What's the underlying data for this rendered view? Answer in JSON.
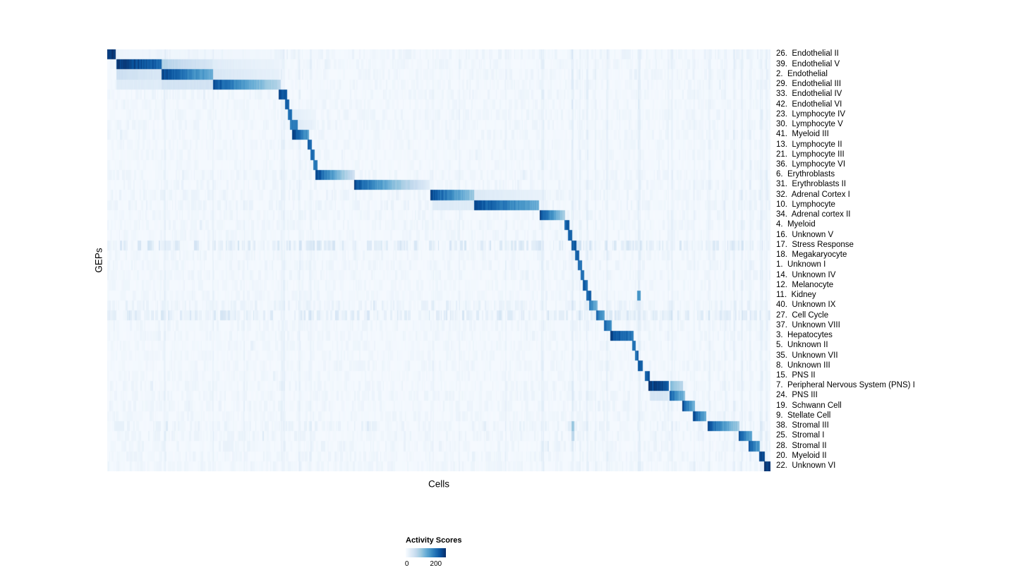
{
  "colors": {
    "background": "#ffffff",
    "text": "#000000",
    "scale_stops": [
      "#f7fbff",
      "#deebf7",
      "#c6dbef",
      "#9ecae1",
      "#6baed6",
      "#4292c6",
      "#2171b5",
      "#08519c",
      "#08306b"
    ]
  },
  "texture": {
    "column_stripes": [
      {
        "x": 0.085,
        "w": 0.003,
        "v": 0.04
      },
      {
        "x": 0.158,
        "w": 0.003,
        "v": 0.04
      },
      {
        "x": 0.205,
        "w": 0.002,
        "v": 0.03
      },
      {
        "x": 0.262,
        "w": 0.006,
        "v": 0.04
      },
      {
        "x": 0.288,
        "w": 0.004,
        "v": 0.04
      },
      {
        "x": 0.305,
        "w": 0.003,
        "v": 0.03
      },
      {
        "x": 0.49,
        "w": 0.003,
        "v": 0.03
      },
      {
        "x": 0.53,
        "w": 0.002,
        "v": 0.03
      },
      {
        "x": 0.6,
        "w": 0.002,
        "v": 0.03
      },
      {
        "x": 0.654,
        "w": 0.004,
        "v": 0.05
      },
      {
        "x": 0.7,
        "w": 0.003,
        "v": 0.06
      },
      {
        "x": 0.712,
        "w": 0.002,
        "v": 0.04
      },
      {
        "x": 0.722,
        "w": 0.003,
        "v": 0.05
      },
      {
        "x": 0.735,
        "w": 0.002,
        "v": 0.03
      },
      {
        "x": 0.752,
        "w": 0.003,
        "v": 0.04
      },
      {
        "x": 0.8,
        "w": 0.004,
        "v": 0.06
      },
      {
        "x": 0.845,
        "w": 0.002,
        "v": 0.03
      },
      {
        "x": 0.85,
        "w": 0.003,
        "v": 0.04
      },
      {
        "x": 0.884,
        "w": 0.002,
        "v": 0.03
      },
      {
        "x": 0.906,
        "w": 0.004,
        "v": 0.04
      },
      {
        "x": 0.93,
        "w": 0.003,
        "v": 0.03
      },
      {
        "x": 0.944,
        "w": 0.003,
        "v": 0.04
      },
      {
        "x": 0.955,
        "w": 0.004,
        "v": 0.05
      },
      {
        "x": 0.968,
        "w": 0.003,
        "v": 0.04
      },
      {
        "x": 0.984,
        "w": 0.004,
        "v": 0.05
      },
      {
        "x": 0.993,
        "w": 0.003,
        "v": 0.04
      }
    ]
  },
  "chart_data": {
    "type": "heatmap",
    "title": "",
    "xlabel": "Cells",
    "ylabel": "GEPs",
    "colormap": "Blues",
    "x_axis_note": "individual cells, no tick labels",
    "colorbar": {
      "title": "Activity Scores",
      "range": [
        0,
        270
      ],
      "ticks": [
        {
          "label": "0",
          "value": 0,
          "pos": 0.03
        },
        {
          "label": "200",
          "value": 200,
          "pos": 0.75
        }
      ]
    },
    "rows": [
      {
        "label": "26.  Endothelial II",
        "noise": 0.06,
        "blocks": [
          {
            "x0": 0.0,
            "x1": 0.013,
            "v": 0.96
          },
          {
            "x0": 0.013,
            "x1": 0.26,
            "v": 0.05,
            "v2": 0.03
          }
        ]
      },
      {
        "label": "39.  Endothelial V",
        "noise": 0.05,
        "blocks": [
          {
            "x0": 0.014,
            "x1": 0.082,
            "v": 0.98,
            "v2": 0.8
          },
          {
            "x0": 0.082,
            "x1": 0.158,
            "v": 0.32,
            "v2": 0.16
          },
          {
            "x0": 0.158,
            "x1": 0.26,
            "v": 0.12,
            "v2": 0.06
          }
        ]
      },
      {
        "label": "2.  Endothelial",
        "noise": 0.05,
        "blocks": [
          {
            "x0": 0.014,
            "x1": 0.082,
            "v": 0.22,
            "v2": 0.15
          },
          {
            "x0": 0.082,
            "x1": 0.16,
            "v": 0.95,
            "v2": 0.5
          },
          {
            "x0": 0.16,
            "x1": 0.26,
            "v": 0.16,
            "v2": 0.08
          }
        ]
      },
      {
        "label": "29.  Endothelial III",
        "noise": 0.05,
        "blocks": [
          {
            "x0": 0.014,
            "x1": 0.082,
            "v": 0.12
          },
          {
            "x0": 0.082,
            "x1": 0.16,
            "v": 0.18
          },
          {
            "x0": 0.16,
            "x1": 0.262,
            "v": 0.92,
            "v2": 0.28
          }
        ]
      },
      {
        "label": "33.  Endothelial IV",
        "noise": 0.05,
        "blocks": [
          {
            "x0": 0.259,
            "x1": 0.271,
            "v": 0.88
          }
        ]
      },
      {
        "label": "42.  Endothelial VI",
        "noise": 0.04,
        "blocks": [
          {
            "x0": 0.268,
            "x1": 0.2745,
            "v": 0.8
          }
        ]
      },
      {
        "label": "23.  Lymphocyte IV",
        "noise": 0.05,
        "blocks": [
          {
            "x0": 0.2725,
            "x1": 0.279,
            "v": 0.76
          },
          {
            "x0": 0.279,
            "x1": 0.315,
            "v": 0.1,
            "v2": 0.05
          }
        ]
      },
      {
        "label": "30.  Lymphocyte V",
        "noise": 0.05,
        "blocks": [
          {
            "x0": 0.2755,
            "x1": 0.287,
            "v": 0.7
          },
          {
            "x0": 0.287,
            "x1": 0.315,
            "v": 0.12,
            "v2": 0.06
          }
        ]
      },
      {
        "label": "41.  Myeloid III",
        "noise": 0.05,
        "blocks": [
          {
            "x0": 0.2785,
            "x1": 0.304,
            "v": 0.96,
            "v2": 0.55
          }
        ]
      },
      {
        "label": "13.  Lymphocyte II",
        "noise": 0.04,
        "blocks": [
          {
            "x0": 0.302,
            "x1": 0.3085,
            "v": 0.8
          }
        ]
      },
      {
        "label": "21.  Lymphocyte III",
        "noise": 0.04,
        "blocks": [
          {
            "x0": 0.3065,
            "x1": 0.3125,
            "v": 0.78
          }
        ]
      },
      {
        "label": "36.  Lymphocyte VI",
        "noise": 0.04,
        "blocks": [
          {
            "x0": 0.3105,
            "x1": 0.3165,
            "v": 0.74
          }
        ]
      },
      {
        "label": "6.  Erythroblasts",
        "noise": 0.05,
        "blocks": [
          {
            "x0": 0.314,
            "x1": 0.373,
            "v": 0.95,
            "v2": 0.18
          }
        ]
      },
      {
        "label": "31.  Erythroblasts II",
        "noise": 0.05,
        "blocks": [
          {
            "x0": 0.372,
            "x1": 0.486,
            "v": 0.92,
            "v2": 0.1
          }
        ]
      },
      {
        "label": "32.  Adrenal Cortex I",
        "noise": 0.06,
        "blocks": [
          {
            "x0": 0.487,
            "x1": 0.553,
            "v": 0.95,
            "v2": 0.38
          },
          {
            "x0": 0.553,
            "x1": 0.655,
            "v": 0.14,
            "v2": 0.07
          }
        ]
      },
      {
        "label": "10.  Lymphocyte",
        "noise": 0.06,
        "blocks": [
          {
            "x0": 0.49,
            "x1": 0.553,
            "v": 0.12
          },
          {
            "x0": 0.553,
            "x1": 0.651,
            "v": 0.95,
            "v2": 0.5
          }
        ]
      },
      {
        "label": "34.  Adrenal cortex II",
        "noise": 0.05,
        "blocks": [
          {
            "x0": 0.652,
            "x1": 0.6905,
            "v": 0.95,
            "v2": 0.32
          }
        ]
      },
      {
        "label": "4.  Myeloid",
        "noise": 0.05,
        "blocks": [
          {
            "x0": 0.6895,
            "x1": 0.6965,
            "v": 0.82
          }
        ]
      },
      {
        "label": "16.  Unknown V",
        "noise": 0.05,
        "blocks": [
          {
            "x0": 0.695,
            "x1": 0.7015,
            "v": 0.78
          }
        ]
      },
      {
        "label": "17.  Stress Response",
        "noise": 0.17,
        "blocks": [
          {
            "x0": 0.7,
            "x1": 0.707,
            "v": 0.84
          }
        ]
      },
      {
        "label": "18.  Megakaryocyte",
        "noise": 0.05,
        "blocks": [
          {
            "x0": 0.7055,
            "x1": 0.7115,
            "v": 0.78
          }
        ]
      },
      {
        "label": "1.  Unknown I",
        "noise": 0.05,
        "blocks": [
          {
            "x0": 0.7095,
            "x1": 0.7155,
            "v": 0.76
          }
        ]
      },
      {
        "label": "14.  Unknown IV",
        "noise": 0.05,
        "blocks": [
          {
            "x0": 0.7135,
            "x1": 0.7195,
            "v": 0.76
          }
        ]
      },
      {
        "label": "12.  Melanocyte",
        "noise": 0.04,
        "blocks": [
          {
            "x0": 0.7175,
            "x1": 0.7245,
            "v": 0.8
          }
        ]
      },
      {
        "label": "11.  Kidney",
        "noise": 0.04,
        "blocks": [
          {
            "x0": 0.722,
            "x1": 0.7295,
            "v": 0.82
          },
          {
            "x0": 0.7985,
            "x1": 0.8045,
            "v": 0.62
          }
        ]
      },
      {
        "label": "40.  Unknown IX",
        "noise": 0.08,
        "blocks": [
          {
            "x0": 0.727,
            "x1": 0.739,
            "v": 0.78,
            "v2": 0.45
          }
        ]
      },
      {
        "label": "27.  Cell Cycle",
        "noise": 0.16,
        "blocks": [
          {
            "x0": 0.737,
            "x1": 0.7505,
            "v": 0.82,
            "v2": 0.5
          }
        ]
      },
      {
        "label": "37.  Unknown VIII",
        "noise": 0.05,
        "blocks": [
          {
            "x0": 0.7485,
            "x1": 0.7605,
            "v": 0.82,
            "v2": 0.6
          }
        ]
      },
      {
        "label": "3.  Hepatocytes",
        "noise": 0.05,
        "blocks": [
          {
            "x0": 0.759,
            "x1": 0.7935,
            "v": 0.93,
            "v2": 0.7
          }
        ]
      },
      {
        "label": "5.  Unknown II",
        "noise": 0.04,
        "blocks": [
          {
            "x0": 0.7915,
            "x1": 0.797,
            "v": 0.78
          }
        ]
      },
      {
        "label": "35.  Unknown VII",
        "noise": 0.04,
        "blocks": [
          {
            "x0": 0.7955,
            "x1": 0.801,
            "v": 0.78
          }
        ]
      },
      {
        "label": "8.  Unknown III",
        "noise": 0.05,
        "blocks": [
          {
            "x0": 0.7995,
            "x1": 0.807,
            "v": 0.82
          }
        ]
      },
      {
        "label": "15.  PNS II",
        "noise": 0.04,
        "blocks": [
          {
            "x0": 0.811,
            "x1": 0.818,
            "v": 0.84
          }
        ]
      },
      {
        "label": "7.  Peripheral Nervous System (PNS) I",
        "noise": 0.05,
        "blocks": [
          {
            "x0": 0.8155,
            "x1": 0.847,
            "v": 0.97,
            "v2": 0.85
          },
          {
            "x0": 0.849,
            "x1": 0.868,
            "v": 0.45,
            "v2": 0.28
          }
        ]
      },
      {
        "label": "24.  PNS III",
        "noise": 0.05,
        "blocks": [
          {
            "x0": 0.818,
            "x1": 0.847,
            "v": 0.16
          },
          {
            "x0": 0.848,
            "x1": 0.871,
            "v": 0.85,
            "v2": 0.42
          }
        ]
      },
      {
        "label": "19.  Schwann Cell",
        "noise": 0.05,
        "blocks": [
          {
            "x0": 0.867,
            "x1": 0.886,
            "v": 0.9,
            "v2": 0.48
          }
        ]
      },
      {
        "label": "9.  Stellate Cell",
        "noise": 0.05,
        "blocks": [
          {
            "x0": 0.883,
            "x1": 0.9035,
            "v": 0.92,
            "v2": 0.5
          }
        ]
      },
      {
        "label": "38.  Stromal III",
        "noise": 0.07,
        "blocks": [
          {
            "x0": 0.9055,
            "x1": 0.953,
            "v": 0.9,
            "v2": 0.35
          },
          {
            "x0": 0.6995,
            "x1": 0.7045,
            "v": 0.4
          }
        ]
      },
      {
        "label": "25.  Stromal I",
        "noise": 0.06,
        "blocks": [
          {
            "x0": 0.952,
            "x1": 0.972,
            "v": 0.86,
            "v2": 0.5
          },
          {
            "x0": 0.6995,
            "x1": 0.7045,
            "v": 0.28
          }
        ]
      },
      {
        "label": "28.  Stromal II",
        "noise": 0.06,
        "blocks": [
          {
            "x0": 0.9665,
            "x1": 0.984,
            "v": 0.84,
            "v2": 0.55
          }
        ]
      },
      {
        "label": "20.  Myeloid II",
        "noise": 0.05,
        "blocks": [
          {
            "x0": 0.9835,
            "x1": 0.9915,
            "v": 0.88
          }
        ]
      },
      {
        "label": "22.  Unknown VI",
        "noise": 0.05,
        "blocks": [
          {
            "x0": 0.99,
            "x1": 1.0,
            "v": 0.95
          }
        ]
      }
    ]
  }
}
